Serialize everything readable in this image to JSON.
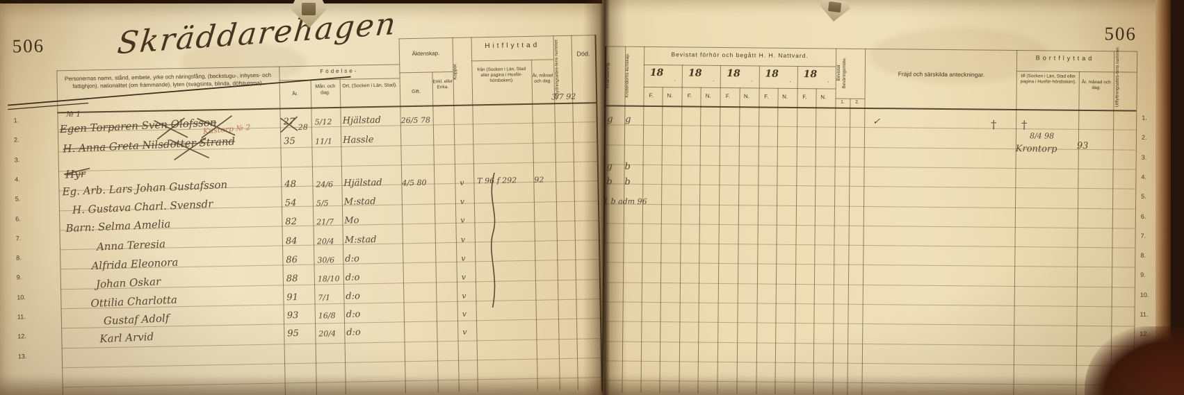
{
  "page": {
    "left_number": "506",
    "right_number": "506",
    "title": "Skräddarehagen"
  },
  "row_numbers": [
    "1.",
    "2.",
    "3.",
    "4.",
    "5.",
    "6.",
    "7.",
    "8.",
    "9.",
    "10.",
    "11.",
    "12.",
    "13."
  ],
  "left_table": {
    "name_header": "Personernas namn, stånd, embete, yrke och näringsfång, (backstugu-, inhyses- och fattighjon), nationalitet (om främmande), lyten (svagsinta, blinda, döfstumma).",
    "birth_group": "Födelse-",
    "birth_year": "År.",
    "birth_monthday": "Mån. och dag.",
    "birth_place": "Ort, (Socken i Län, Stad).",
    "marriage_group": "Äktenskap.",
    "married": "Gift.",
    "widow": "Enkl. eller Enka.",
    "smallpox": "Koppor.",
    "moved_in_group": "Hitflyttad",
    "moved_in_from": "från (Socken i Län, Stad eller pagina i Husför-hörsboken).",
    "moved_in_date": "År, månad och dag.",
    "moved_in_cert": "Inflyttningsattes-tens nummer.",
    "death": "Död."
  },
  "right_table": {
    "reading": "Innanläsning.",
    "knowledge": "Kristendoms-kunskap.",
    "communion_group": "Bevistat förhör och begått H. H. Nattvard.",
    "year_prefix": "18",
    "col_f": "F.",
    "col_n": "N.",
    "military": "Bevistat Beväringsmöte.",
    "military_sub": [
      "1.",
      "2."
    ],
    "conduct": "Fräjd och särskilda anteckningar.",
    "moved_out_group": "Bortflyttad",
    "moved_out_to": "till (Socken i Län, Stad eller pagina i Husför-hörsboken).",
    "moved_out_date": "År, månad och dag.",
    "moved_out_cert": "Utflyttningsattes-tens nummer."
  },
  "entries": {
    "house_label": "№ 1",
    "cert_note": "3/7 92",
    "rows": [
      {
        "name": "Egen Torparen Sven Olofsson",
        "struck": true,
        "red_note": "Kustorp № 2",
        "birth_year": "27",
        "birth_year_corr": "28",
        "birth_date": "5/12",
        "birth_place": "Hjälstad",
        "marriage": "26/5 78",
        "reading": "g",
        "knowledge": "g",
        "frejd_mark": "✓",
        "frejd_cross": "†",
        "out_cross": "†",
        "out_date": "8/4 98"
      },
      {
        "name": "H. Anna Greta Nilsdotter Strand",
        "struck": true,
        "birth_year": "35",
        "birth_date": "11/1",
        "birth_place": "Hassle",
        "out_to": "Krontorp",
        "out_year": "93"
      },
      {
        "name": "Hyr",
        "struck": true,
        "reading": "g",
        "knowledge": "b"
      },
      {
        "name": "Eg. Arb. Lars Johan Gustafsson",
        "birth_year": "48",
        "birth_date": "24/6",
        "birth_place": "Hjälstad",
        "marriage": "4/5 80",
        "pox": "v",
        "in_from": "T 96 f 292",
        "in_year": "92",
        "reading": "b",
        "knowledge": "b"
      },
      {
        "name": "H. Gustava Charl. Svensdr",
        "birth_year": "54",
        "birth_date": "5/5",
        "birth_place": "M:stad",
        "pox": "v",
        "note": "1 b adm 96"
      },
      {
        "name": "Barn: Selma Amelia",
        "birth_year": "82",
        "birth_date": "21/7",
        "birth_place": "Mo",
        "pox": "v"
      },
      {
        "name": "Anna Teresia",
        "birth_year": "84",
        "birth_date": "20/4",
        "birth_place": "M:stad",
        "pox": "v"
      },
      {
        "name": "Alfrida Eleonora",
        "birth_year": "86",
        "birth_date": "30/6",
        "birth_place": "d:o",
        "pox": "v"
      },
      {
        "name": "Johan Oskar",
        "birth_year": "88",
        "birth_date": "18/10",
        "birth_place": "d:o",
        "pox": "v"
      },
      {
        "name": "Ottilia Charlotta",
        "birth_year": "91",
        "birth_date": "7/1",
        "birth_place": "d:o",
        "pox": "v"
      },
      {
        "name": "Gustaf Adolf",
        "birth_year": "93",
        "birth_date": "16/8",
        "birth_place": "d:o",
        "pox": "v"
      },
      {
        "name": "Karl Arvid",
        "birth_year": "95",
        "birth_date": "20/4",
        "birth_place": "d:o",
        "pox": "v"
      }
    ]
  }
}
